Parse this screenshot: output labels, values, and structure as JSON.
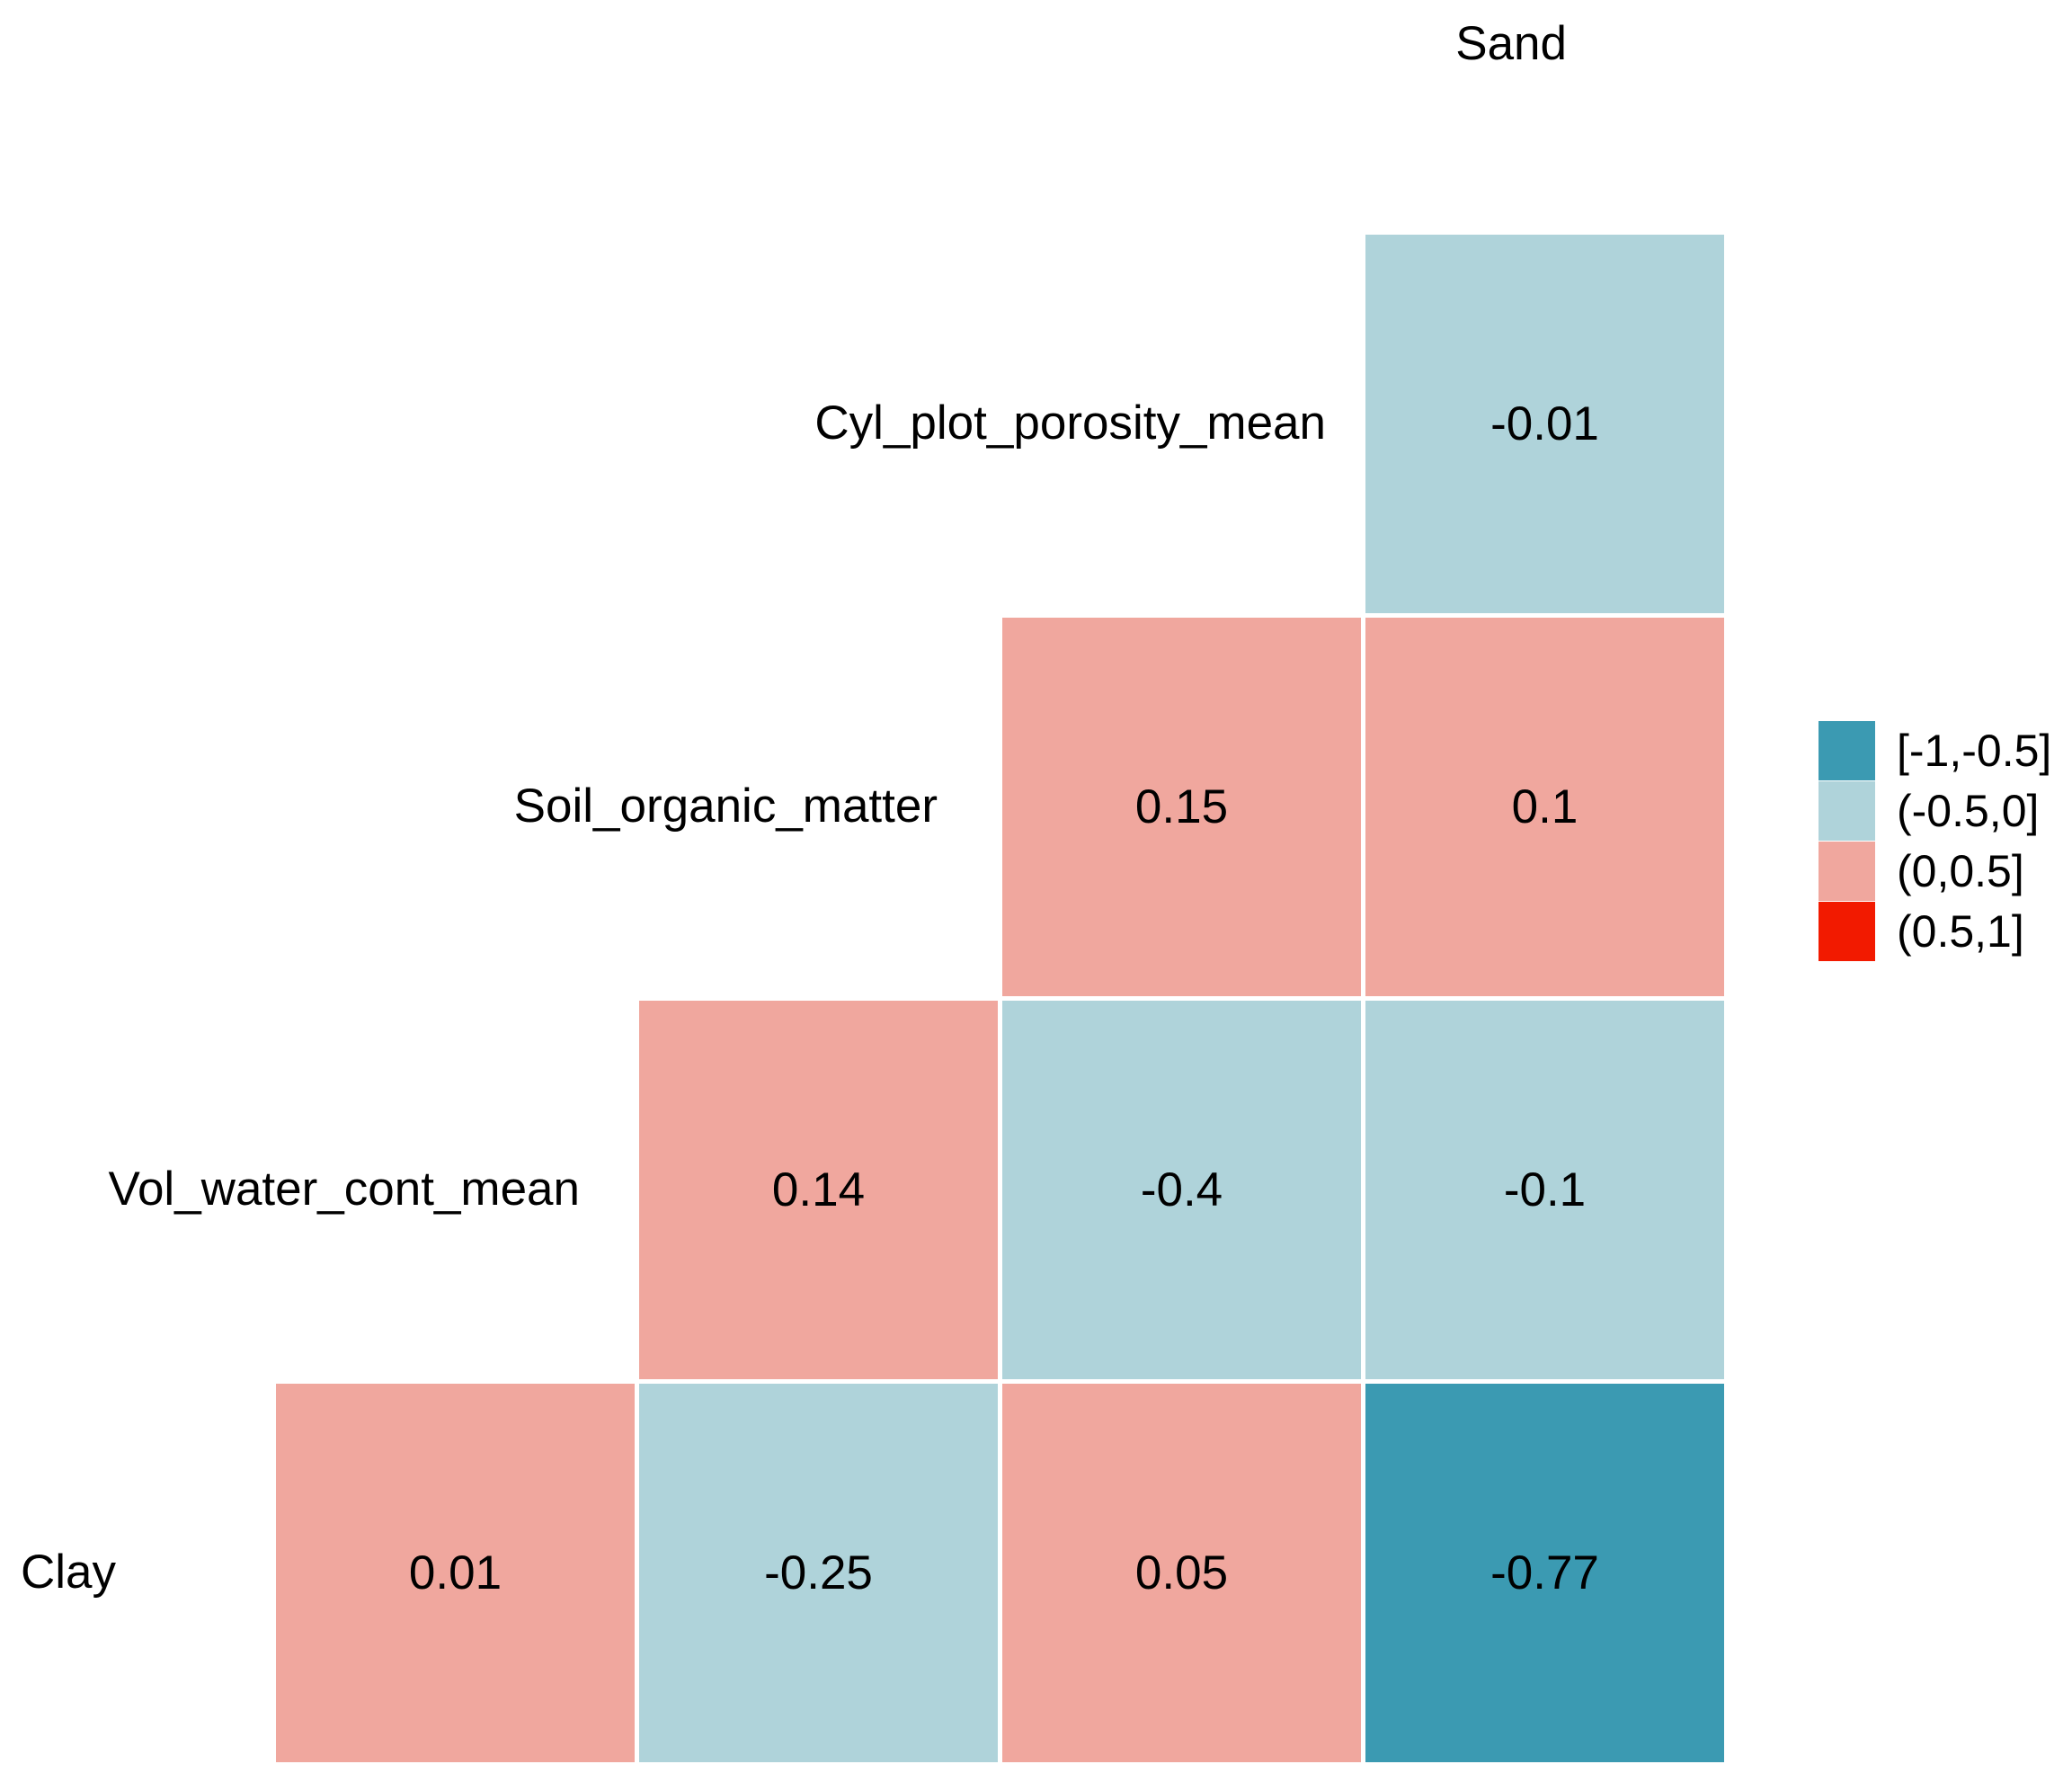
{
  "chart_data": {
    "type": "heatmap",
    "title": "",
    "description": "Lower-triangular correlation matrix of soil variables, binned color scale",
    "top_label": "Sand",
    "columns": [
      "Vol_water_cont_mean",
      "Soil_organic_matter",
      "Cyl_plot_porosity_mean",
      "Sand"
    ],
    "rows": [
      {
        "label": "Cyl_plot_porosity_mean",
        "cells": [
          {
            "col": 4,
            "value": "-0.01",
            "bin": "(-0.5,0]",
            "color": "#AFD3DA"
          }
        ]
      },
      {
        "label": "Soil_organic_matter",
        "cells": [
          {
            "col": 3,
            "value": "0.15",
            "bin": "(0,0.5]",
            "color": "#F0A79E"
          },
          {
            "col": 4,
            "value": "0.1",
            "bin": "(0,0.5]",
            "color": "#F0A79E"
          }
        ]
      },
      {
        "label": "Vol_water_cont_mean",
        "cells": [
          {
            "col": 2,
            "value": "0.14",
            "bin": "(0,0.5]",
            "color": "#F0A79E"
          },
          {
            "col": 3,
            "value": "-0.4",
            "bin": "(-0.5,0]",
            "color": "#AFD3DA"
          },
          {
            "col": 4,
            "value": "-0.1",
            "bin": "(-0.5,0]",
            "color": "#AFD3DA"
          }
        ]
      },
      {
        "label": "Clay",
        "cells": [
          {
            "col": 1,
            "value": "0.01",
            "bin": "(0,0.5]",
            "color": "#F0A79E"
          },
          {
            "col": 2,
            "value": "-0.25",
            "bin": "(-0.5,0]",
            "color": "#AFD3DA"
          },
          {
            "col": 3,
            "value": "0.05",
            "bin": "(0,0.5]",
            "color": "#F0A79E"
          },
          {
            "col": 4,
            "value": "-0.77",
            "bin": "[-1,-0.5]",
            "color": "#3B9AB2"
          }
        ]
      }
    ],
    "legend": {
      "position": "right",
      "entries": [
        {
          "label": "[-1,-0.5]",
          "color": "#3B9AB2"
        },
        {
          "label": "(-0.5,0]",
          "color": "#AFD3DA"
        },
        {
          "label": "(0,0.5]",
          "color": "#F0A79E"
        },
        {
          "label": "(0.5,1]",
          "color": "#F21A00"
        }
      ]
    },
    "colors": {
      "strong_negative": "#3B9AB2",
      "weak_negative": "#AFD3DA",
      "weak_positive": "#F0A79E",
      "strong_positive": "#F21A00",
      "background": "#FFFFFF",
      "text": "#000000"
    }
  }
}
